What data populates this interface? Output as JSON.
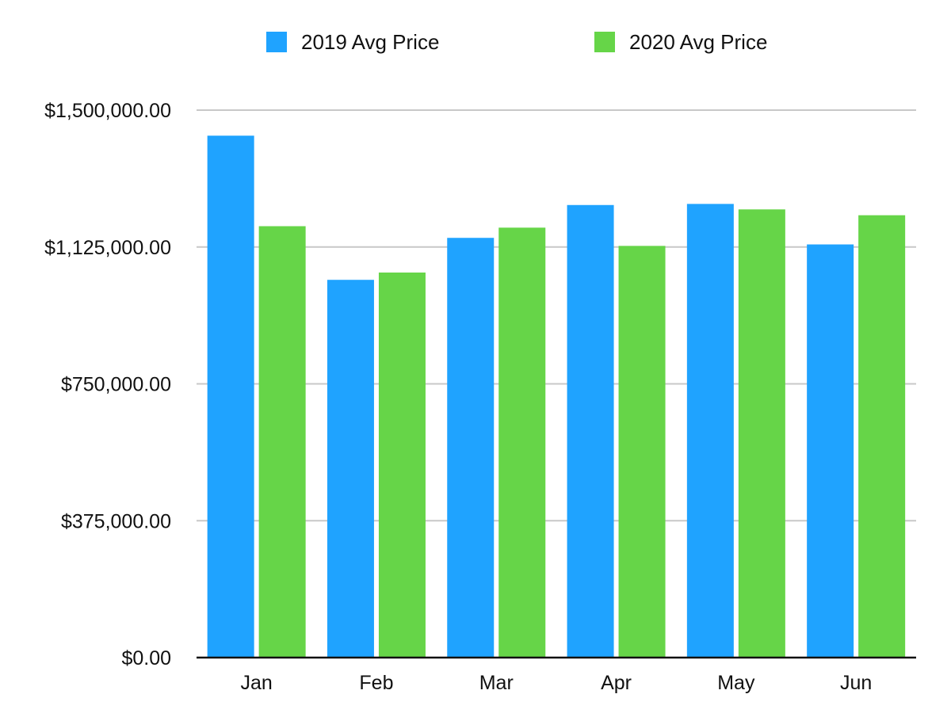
{
  "chart_data": {
    "type": "bar",
    "categories": [
      "Jan",
      "Feb",
      "Mar",
      "Apr",
      "May",
      "Jun"
    ],
    "series": [
      {
        "name": "2019 Avg Price",
        "color": "#1fa3ff",
        "values": [
          1430000,
          1035000,
          1150000,
          1240000,
          1243000,
          1132000
        ]
      },
      {
        "name": "2020 Avg Price",
        "color": "#66d548",
        "values": [
          1182000,
          1055000,
          1178000,
          1128000,
          1228000,
          1212000
        ]
      }
    ],
    "yticks": [
      {
        "value": 0,
        "label": "$0.00"
      },
      {
        "value": 375000,
        "label": "$375,000.00"
      },
      {
        "value": 750000,
        "label": "$750,000.00"
      },
      {
        "value": 1125000,
        "label": "$1,125,000.00"
      },
      {
        "value": 1500000,
        "label": "$1,500,000.00"
      }
    ],
    "ylim": [
      0,
      1500000
    ],
    "title": "",
    "xlabel": "",
    "ylabel": "",
    "grid": true,
    "legend_position": "top-center",
    "gridline_color": "#c8c8c8",
    "axis_color": "#111111"
  }
}
